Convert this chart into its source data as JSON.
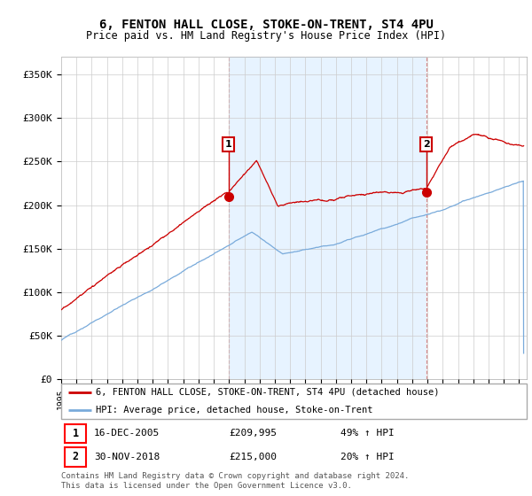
{
  "title": "6, FENTON HALL CLOSE, STOKE-ON-TRENT, ST4 4PU",
  "subtitle": "Price paid vs. HM Land Registry's House Price Index (HPI)",
  "ylabel_ticks": [
    "£0",
    "£50K",
    "£100K",
    "£150K",
    "£200K",
    "£250K",
    "£300K",
    "£350K"
  ],
  "ylim": [
    0,
    370000
  ],
  "xlim_start": 1995.0,
  "xlim_end": 2025.5,
  "sale1_date": 2005.96,
  "sale1_price": 209995,
  "sale1_label": "1",
  "sale2_date": 2018.92,
  "sale2_price": 215000,
  "sale2_label": "2",
  "legend_line1": "6, FENTON HALL CLOSE, STOKE-ON-TRENT, ST4 4PU (detached house)",
  "legend_line2": "HPI: Average price, detached house, Stoke-on-Trent",
  "footer": "Contains HM Land Registry data © Crown copyright and database right 2024.\nThis data is licensed under the Open Government Licence v3.0.",
  "line_color_red": "#cc0000",
  "line_color_blue": "#7aabdb",
  "shade_color": "#ddeeff",
  "background_color": "#ffffff",
  "grid_color": "#cccccc"
}
